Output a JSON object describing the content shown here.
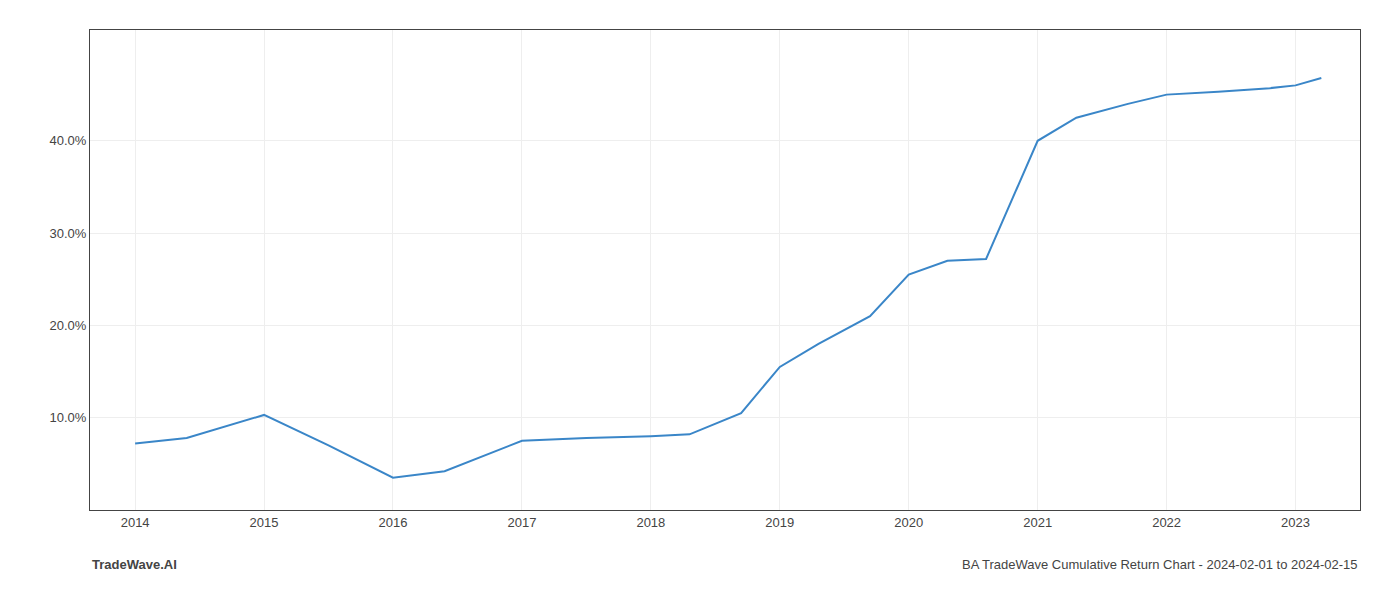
{
  "chart_data": {
    "type": "line",
    "x": [
      2014.0,
      2014.4,
      2015.0,
      2015.5,
      2016.0,
      2016.4,
      2017.0,
      2017.5,
      2018.0,
      2018.3,
      2018.7,
      2019.0,
      2019.3,
      2019.7,
      2020.0,
      2020.3,
      2020.6,
      2021.0,
      2021.3,
      2021.7,
      2022.0,
      2022.4,
      2022.8,
      2023.0,
      2023.2
    ],
    "values": [
      7.2,
      7.8,
      10.3,
      7.0,
      3.5,
      4.2,
      7.5,
      7.8,
      8.0,
      8.2,
      10.5,
      15.5,
      18.0,
      21.0,
      25.5,
      27.0,
      27.2,
      40.0,
      42.5,
      44.0,
      45.0,
      45.3,
      45.7,
      46.0,
      46.8
    ],
    "color": "#3a86c8",
    "xlim": [
      2013.65,
      2023.5
    ],
    "xticks": [
      2014,
      2015,
      2016,
      2017,
      2018,
      2019,
      2020,
      2021,
      2022,
      2023
    ],
    "ylim": [
      0,
      52
    ],
    "yticks": [
      {
        "value": 10.0,
        "label": "10.0%"
      },
      {
        "value": 20.0,
        "label": "20.0%"
      },
      {
        "value": 30.0,
        "label": "30.0%"
      },
      {
        "value": 40.0,
        "label": "40.0%"
      }
    ],
    "grid": true,
    "annotations": [
      "TradeWave.AI",
      "BA TradeWave Cumulative Return Chart - 2024-02-01 to 2024-02-15"
    ]
  }
}
